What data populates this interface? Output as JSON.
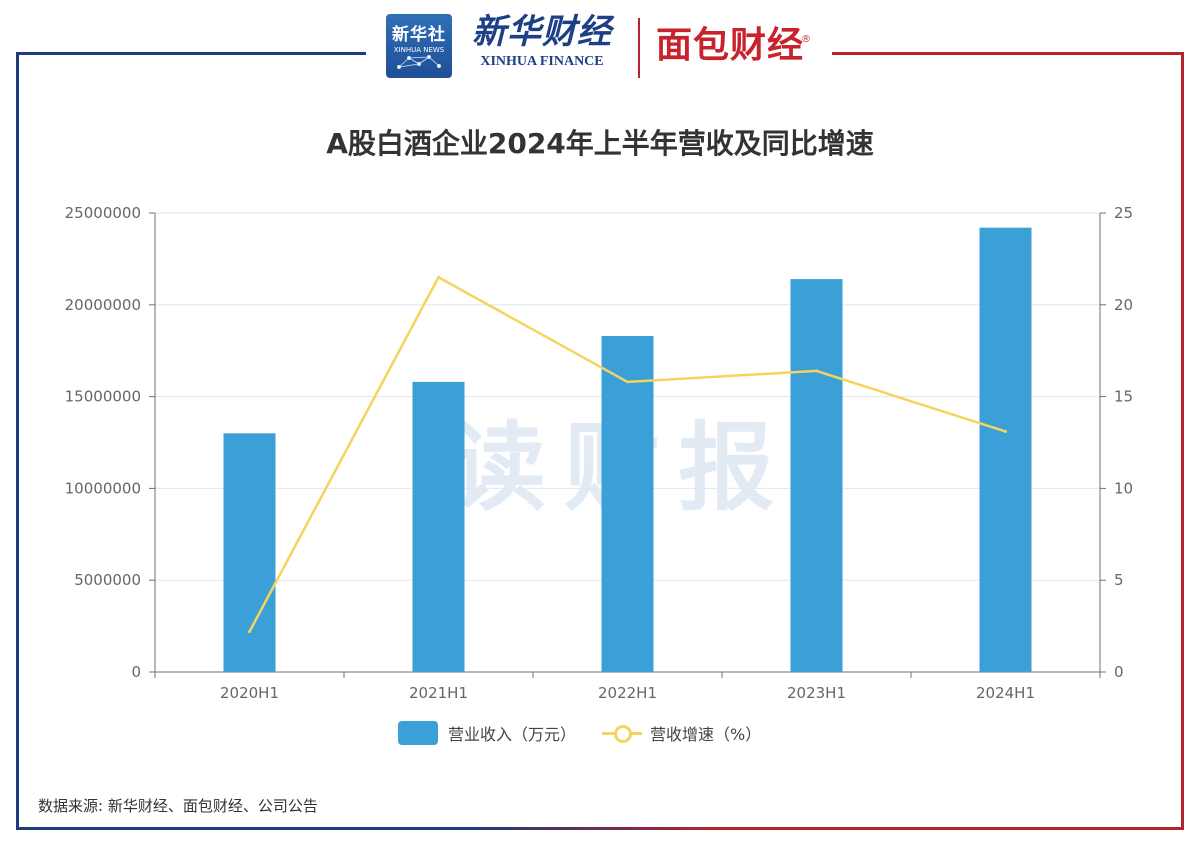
{
  "header": {
    "xinhua_logo_cn": "新华社",
    "xinhua_logo_en": "XINHUA NEWS",
    "xinhua_finance_cn": "新华财经",
    "xinhua_finance_en": "XINHUA FINANCE",
    "mianbao_finance": "面包财经",
    "registered_mark": "®"
  },
  "watermark": "读财报",
  "chart_data": {
    "type": "bar",
    "title": "A股白酒企业2024年上半年营收及同比增速",
    "categories": [
      "2020H1",
      "2021H1",
      "2022H1",
      "2023H1",
      "2024H1"
    ],
    "series": [
      {
        "name": "营业收入（万元）",
        "type": "bar",
        "axis": "left",
        "color": "#3b9fd8",
        "values": [
          13000000,
          15800000,
          18300000,
          21400000,
          24200000
        ]
      },
      {
        "name": "营收增速（%）",
        "type": "line",
        "axis": "right",
        "color": "#f5d45e",
        "values": [
          2.2,
          21.5,
          15.8,
          16.4,
          13.1
        ]
      }
    ],
    "y_left": {
      "range": [
        0,
        25000000
      ],
      "ticks": [
        "0",
        "5000000",
        "10000000",
        "15000000",
        "20000000",
        "25000000"
      ]
    },
    "y_right": {
      "range": [
        0,
        25
      ],
      "ticks": [
        "0",
        "5",
        "10",
        "15",
        "20",
        "25"
      ]
    },
    "legend_position": "bottom-center",
    "grid": true
  },
  "legend": {
    "bar_label": "营业收入（万元）",
    "line_label": "营收增速（%）"
  },
  "source": "数据来源: 新华财经、面包财经、公司公告"
}
